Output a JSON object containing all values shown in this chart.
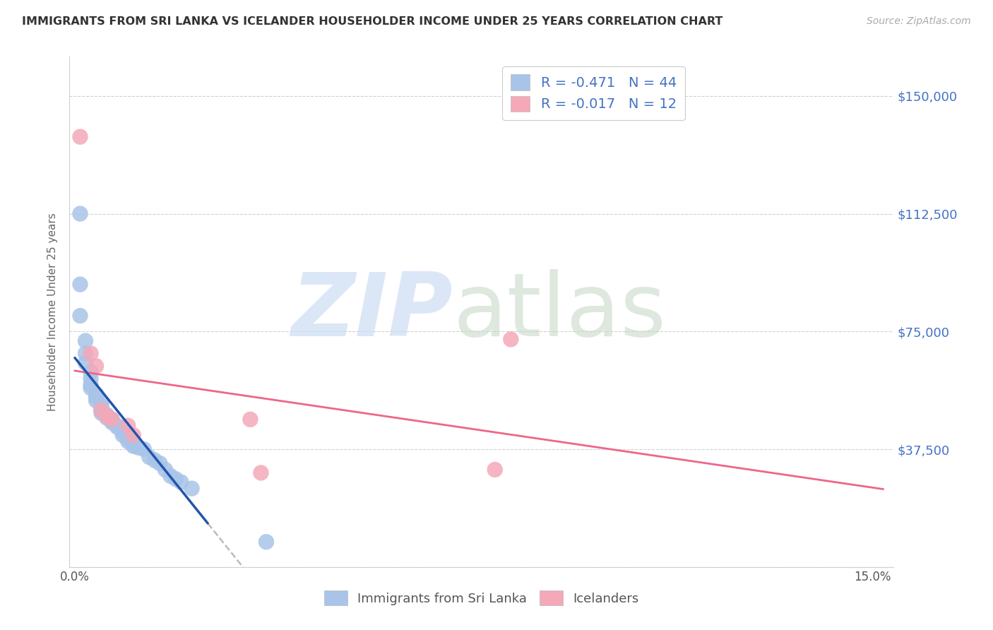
{
  "title": "IMMIGRANTS FROM SRI LANKA VS ICELANDER HOUSEHOLDER INCOME UNDER 25 YEARS CORRELATION CHART",
  "source": "Source: ZipAtlas.com",
  "ylabel": "Householder Income Under 25 years",
  "xlim": [
    -0.001,
    0.154
  ],
  "ylim": [
    0,
    162500
  ],
  "yticks": [
    0,
    37500,
    75000,
    112500,
    150000
  ],
  "ytick_labels": [
    "",
    "$37,500",
    "$75,000",
    "$112,500",
    "$150,000"
  ],
  "xtick_vals": [
    0.0,
    0.01,
    0.02,
    0.03,
    0.04,
    0.05,
    0.06,
    0.07,
    0.08,
    0.09,
    0.1,
    0.11,
    0.12,
    0.13,
    0.14,
    0.15
  ],
  "xtick_labels": [
    "0.0%",
    "",
    "",
    "",
    "",
    "",
    "",
    "",
    "",
    "",
    "",
    "",
    "",
    "",
    "",
    "15.0%"
  ],
  "legend_label1": "Immigrants from Sri Lanka",
  "legend_label2": "Icelanders",
  "color_sri_lanka": "#a8c4e8",
  "color_icelanders": "#f4a8b8",
  "color_line_sri_lanka": "#2255aa",
  "color_line_icelanders": "#ee6688",
  "color_axis_right": "#4472c4",
  "color_legend_text": "#4472c4",
  "sri_lanka_x": [
    0.001,
    0.001,
    0.001,
    0.002,
    0.002,
    0.002,
    0.003,
    0.003,
    0.003,
    0.003,
    0.004,
    0.004,
    0.004,
    0.005,
    0.005,
    0.005,
    0.005,
    0.005,
    0.005,
    0.006,
    0.006,
    0.006,
    0.007,
    0.007,
    0.007,
    0.008,
    0.008,
    0.009,
    0.009,
    0.01,
    0.01,
    0.011,
    0.011,
    0.012,
    0.013,
    0.014,
    0.015,
    0.016,
    0.017,
    0.018,
    0.019,
    0.02,
    0.022,
    0.036
  ],
  "sri_lanka_y": [
    112500,
    90000,
    80000,
    72000,
    68000,
    65000,
    62000,
    60000,
    58000,
    57000,
    55000,
    54000,
    53000,
    52000,
    51000,
    50500,
    50000,
    49500,
    49000,
    48500,
    48000,
    47500,
    47000,
    46500,
    46000,
    45000,
    44500,
    43000,
    42000,
    41000,
    40000,
    39000,
    38500,
    38000,
    37500,
    35000,
    34000,
    33000,
    31000,
    29000,
    28000,
    27000,
    25000,
    8000
  ],
  "icelanders_x": [
    0.001,
    0.003,
    0.004,
    0.005,
    0.006,
    0.007,
    0.01,
    0.011,
    0.033,
    0.035,
    0.079,
    0.082
  ],
  "icelanders_y": [
    137000,
    68000,
    64000,
    50000,
    48000,
    47000,
    45000,
    42000,
    47000,
    30000,
    31000,
    72500
  ],
  "watermark_zip_color": "#ccddf5",
  "watermark_atlas_color": "#c8dac8"
}
